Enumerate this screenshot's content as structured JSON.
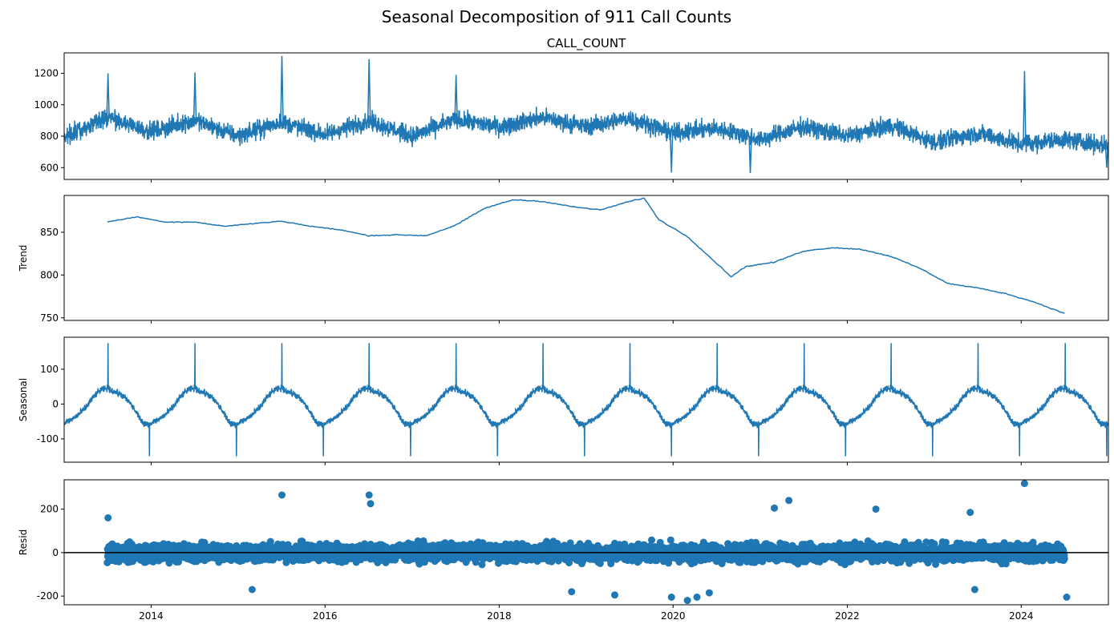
{
  "figure": {
    "title": "Seasonal Decomposition of 911 Call Counts",
    "line_color": "#1f77b4",
    "zero_line_color": "#000000"
  },
  "chart_data": [
    {
      "type": "line",
      "title": "CALL_COUNT",
      "ylabel": "",
      "x_range": [
        "2013-01-01",
        "2025-01-01"
      ],
      "ylim": [
        525,
        1330
      ],
      "yticks": [
        600,
        800,
        1000,
        1200
      ],
      "xticks": [
        "2014",
        "2016",
        "2018",
        "2020",
        "2022",
        "2024"
      ],
      "x_tick_labels_shown": false,
      "x": [
        "2013-01",
        "2013-07",
        "2014-01",
        "2014-07",
        "2015-01",
        "2015-07",
        "2016-01",
        "2016-07",
        "2017-01",
        "2017-07",
        "2018-01",
        "2018-07",
        "2019-01",
        "2019-07",
        "2020-01",
        "2020-07",
        "2021-01",
        "2021-07",
        "2022-01",
        "2022-07",
        "2023-01",
        "2023-07",
        "2024-01",
        "2024-07",
        "2025-01"
      ],
      "values": [
        800,
        920,
        830,
        900,
        800,
        890,
        810,
        900,
        800,
        905,
        860,
        920,
        860,
        915,
        820,
        850,
        780,
        860,
        800,
        870,
        760,
        820,
        750,
        780,
        740
      ],
      "spikes": [
        {
          "x": "2013-07-04",
          "y": 1200
        },
        {
          "x": "2014-07-04",
          "y": 1205
        },
        {
          "x": "2015-07-04",
          "y": 1310
        },
        {
          "x": "2016-07-04",
          "y": 1290
        },
        {
          "x": "2017-07-04",
          "y": 1190
        },
        {
          "x": "2024-01-15",
          "y": 1215
        }
      ],
      "dips": [
        {
          "x": "2019-12-25",
          "y": 570
        },
        {
          "x": "2020-11-20",
          "y": 565
        },
        {
          "x": "2024-12-25",
          "y": 600
        }
      ]
    },
    {
      "type": "line",
      "title": "",
      "ylabel": "Trend",
      "x_range": [
        "2013-01-01",
        "2025-01-01"
      ],
      "ylim": [
        747,
        893
      ],
      "yticks": [
        750,
        800,
        850
      ],
      "xticks": [
        "2014",
        "2016",
        "2018",
        "2020",
        "2022",
        "2024"
      ],
      "x_tick_labels_shown": false,
      "x": [
        "2013-07-01",
        "2013-11-01",
        "2014-03-01",
        "2014-07-01",
        "2014-11-01",
        "2015-03-01",
        "2015-07-01",
        "2015-11-01",
        "2016-03-01",
        "2016-07-01",
        "2016-11-01",
        "2017-03-01",
        "2017-07-01",
        "2017-11-01",
        "2018-03-01",
        "2018-07-01",
        "2018-11-01",
        "2019-03-01",
        "2019-07-01",
        "2019-09-01",
        "2019-11-01",
        "2020-03-01",
        "2020-09-01",
        "2020-11-01",
        "2021-03-01",
        "2021-07-01",
        "2021-11-01",
        "2022-03-01",
        "2022-07-01",
        "2022-11-01",
        "2023-03-01",
        "2023-07-01",
        "2023-11-01",
        "2024-03-01",
        "2024-07-01"
      ],
      "values": [
        862,
        868,
        862,
        862,
        857,
        860,
        863,
        857,
        853,
        846,
        847,
        846,
        858,
        878,
        888,
        886,
        880,
        876,
        886,
        890,
        865,
        845,
        798,
        810,
        815,
        828,
        832,
        830,
        822,
        808,
        790,
        785,
        778,
        768,
        755
      ]
    },
    {
      "type": "line",
      "title": "",
      "ylabel": "Seasonal",
      "x_range": [
        "2013-01-01",
        "2025-01-01"
      ],
      "ylim": [
        -167,
        192
      ],
      "yticks": [
        -100,
        0,
        100
      ],
      "xticks": [
        "2014",
        "2016",
        "2018",
        "2020",
        "2022",
        "2024"
      ],
      "x_tick_labels_shown": false,
      "annual_pattern": {
        "month": [
          1,
          2,
          3,
          4,
          5,
          6,
          7,
          8,
          9,
          10,
          11,
          12
        ],
        "values": [
          -55,
          -45,
          -30,
          -10,
          20,
          40,
          45,
          35,
          25,
          5,
          -25,
          -60
        ]
      },
      "peak": {
        "date": "07-04",
        "value": 175
      },
      "trough": {
        "date": "12-25",
        "value": -150
      }
    },
    {
      "type": "scatter",
      "title": "",
      "ylabel": "Resid",
      "x_range": [
        "2013-01-01",
        "2025-01-01"
      ],
      "ylim": [
        -240,
        335
      ],
      "yticks": [
        -200,
        0,
        200
      ],
      "xticks": [
        "2014",
        "2016",
        "2018",
        "2020",
        "2022",
        "2024"
      ],
      "x_tick_labels_shown": true,
      "zero_line": 0,
      "data_range": [
        "2013-07-01",
        "2024-07-01"
      ],
      "typical_spread": 60,
      "outliers": [
        {
          "x": "2013-07-04",
          "y": 160
        },
        {
          "x": "2015-07-04",
          "y": 265
        },
        {
          "x": "2016-07-04",
          "y": 265
        },
        {
          "x": "2016-07-10",
          "y": 225
        },
        {
          "x": "2021-05-01",
          "y": 240
        },
        {
          "x": "2021-03-01",
          "y": 205
        },
        {
          "x": "2022-05-01",
          "y": 200
        },
        {
          "x": "2024-01-15",
          "y": 318
        },
        {
          "x": "2023-06-01",
          "y": 185
        },
        {
          "x": "2019-05-01",
          "y": -195
        },
        {
          "x": "2019-12-25",
          "y": -205
        },
        {
          "x": "2020-03-01",
          "y": -220
        },
        {
          "x": "2020-04-10",
          "y": -205
        },
        {
          "x": "2020-06-01",
          "y": -185
        },
        {
          "x": "2024-07-10",
          "y": -205
        },
        {
          "x": "2015-03-01",
          "y": -170
        },
        {
          "x": "2018-11-01",
          "y": -180
        },
        {
          "x": "2023-06-20",
          "y": -170
        }
      ]
    }
  ]
}
